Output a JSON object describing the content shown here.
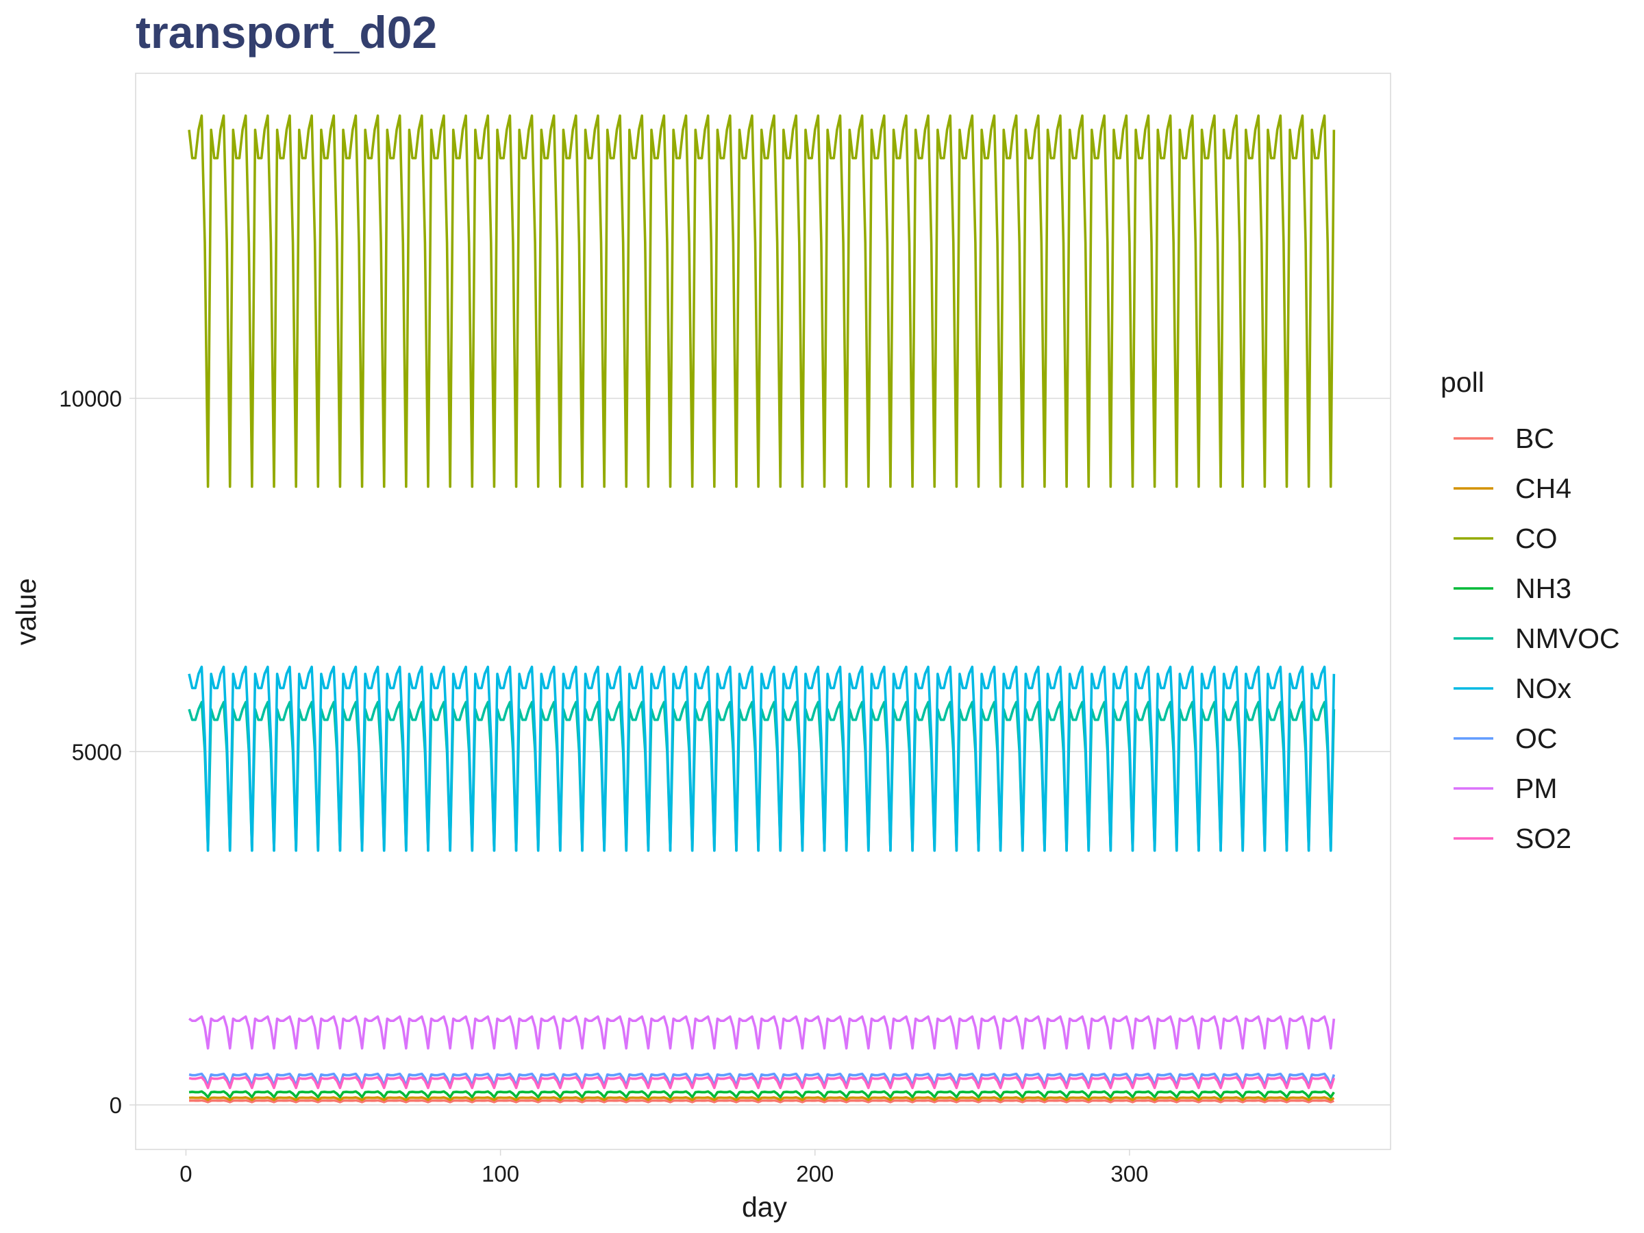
{
  "chart_data": {
    "type": "line",
    "title": "transport_d02",
    "xlabel": "day",
    "ylabel": "value",
    "xlim": [
      -16,
      383
    ],
    "ylim": [
      -630,
      14600
    ],
    "x_ticks": [
      0,
      100,
      200,
      300
    ],
    "y_ticks": [
      0,
      5000,
      10000
    ],
    "grid": true,
    "legend": {
      "title": "poll",
      "position": "right"
    },
    "x_range": [
      1,
      365
    ],
    "weekly_pattern_note": "",
    "series": [
      {
        "name": "BC",
        "color": "#f8766d",
        "weekly": [
          60,
          62,
          60,
          60,
          64,
          55,
          40
        ]
      },
      {
        "name": "CH4",
        "color": "#d39200",
        "weekly": [
          100,
          103,
          100,
          100,
          106,
          92,
          70
        ]
      },
      {
        "name": "CO",
        "color": "#93aa00",
        "weekly": [
          13800,
          13400,
          13400,
          13800,
          14000,
          12200,
          8750
        ]
      },
      {
        "name": "NH3",
        "color": "#00ba38",
        "weekly": [
          180,
          185,
          180,
          180,
          190,
          160,
          110
        ]
      },
      {
        "name": "NMVOC",
        "color": "#00c19f",
        "weekly": [
          5600,
          5450,
          5450,
          5600,
          5700,
          5000,
          3600
        ]
      },
      {
        "name": "NOx",
        "color": "#00b9e3",
        "weekly": [
          6100,
          5900,
          5900,
          6100,
          6200,
          5200,
          3600
        ]
      },
      {
        "name": "OC",
        "color": "#619cff",
        "weekly": [
          430,
          420,
          420,
          430,
          440,
          380,
          270
        ]
      },
      {
        "name": "PM",
        "color": "#db72fb",
        "weekly": [
          1220,
          1190,
          1190,
          1220,
          1250,
          1100,
          800
        ]
      },
      {
        "name": "SO2",
        "color": "#ff61c3",
        "weekly": [
          380,
          370,
          370,
          380,
          390,
          340,
          240
        ]
      }
    ]
  }
}
